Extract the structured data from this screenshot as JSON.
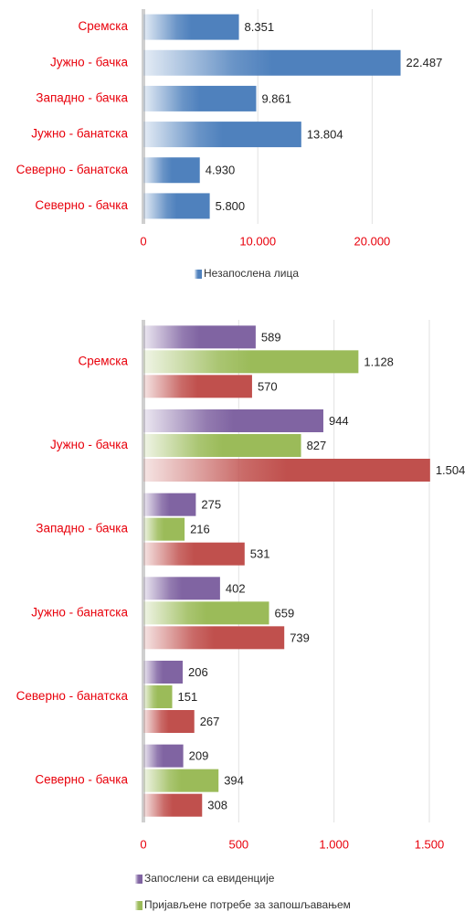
{
  "chart_data": [
    {
      "type": "bar",
      "orientation": "horizontal",
      "categories": [
        "Сремска",
        "Јужно - бачка",
        "Западно - бачка",
        "Јужно - банатска",
        "Северно - банатска",
        "Северно - бачка"
      ],
      "series": [
        {
          "name": "Незапослена лица",
          "color": "#4f81bd",
          "values": [
            8351,
            22487,
            9861,
            13804,
            4930,
            5800
          ],
          "value_labels": [
            "8.351",
            "22.487",
            "9.861",
            "13.804",
            "4.930",
            "5.800"
          ]
        }
      ],
      "xlim": [
        0,
        25000
      ],
      "xticks": [
        0,
        {
          "value": 10000,
          "label": "10.000"
        },
        {
          "value": 20000,
          "label": "20.000"
        }
      ],
      "grid": true,
      "legend": "bottom"
    },
    {
      "type": "bar",
      "orientation": "horizontal",
      "categories": [
        "Сремска",
        "Јужно - бачка",
        "Западно - бачка",
        "Јужно - банатска",
        "Северно - банатска",
        "Северно - бачка"
      ],
      "series": [
        {
          "name": "Запослени са евиденције",
          "color": "#8064a2",
          "values": [
            589,
            944,
            275,
            402,
            206,
            209
          ],
          "value_labels": [
            "589",
            "944",
            "275",
            "402",
            "206",
            "209"
          ]
        },
        {
          "name": "Пријављене потребе за запошљавањем",
          "color": "#9bbb59",
          "values": [
            1128,
            827,
            216,
            659,
            151,
            394
          ],
          "value_labels": [
            "1.128",
            "827",
            "216",
            "659",
            "151",
            "394"
          ]
        },
        {
          "color": "#c0504d",
          "values": [
            570,
            1504,
            531,
            739,
            267,
            308
          ],
          "value_labels": [
            "570",
            "1.504",
            "531",
            "739",
            "267",
            "308"
          ]
        }
      ],
      "xlim": [
        0,
        1500
      ],
      "xticks": [
        0,
        500,
        {
          "value": 1000,
          "label": "1.000"
        },
        {
          "value": 1500,
          "label": "1.500"
        }
      ],
      "grid": true,
      "legend": "bottom"
    }
  ]
}
